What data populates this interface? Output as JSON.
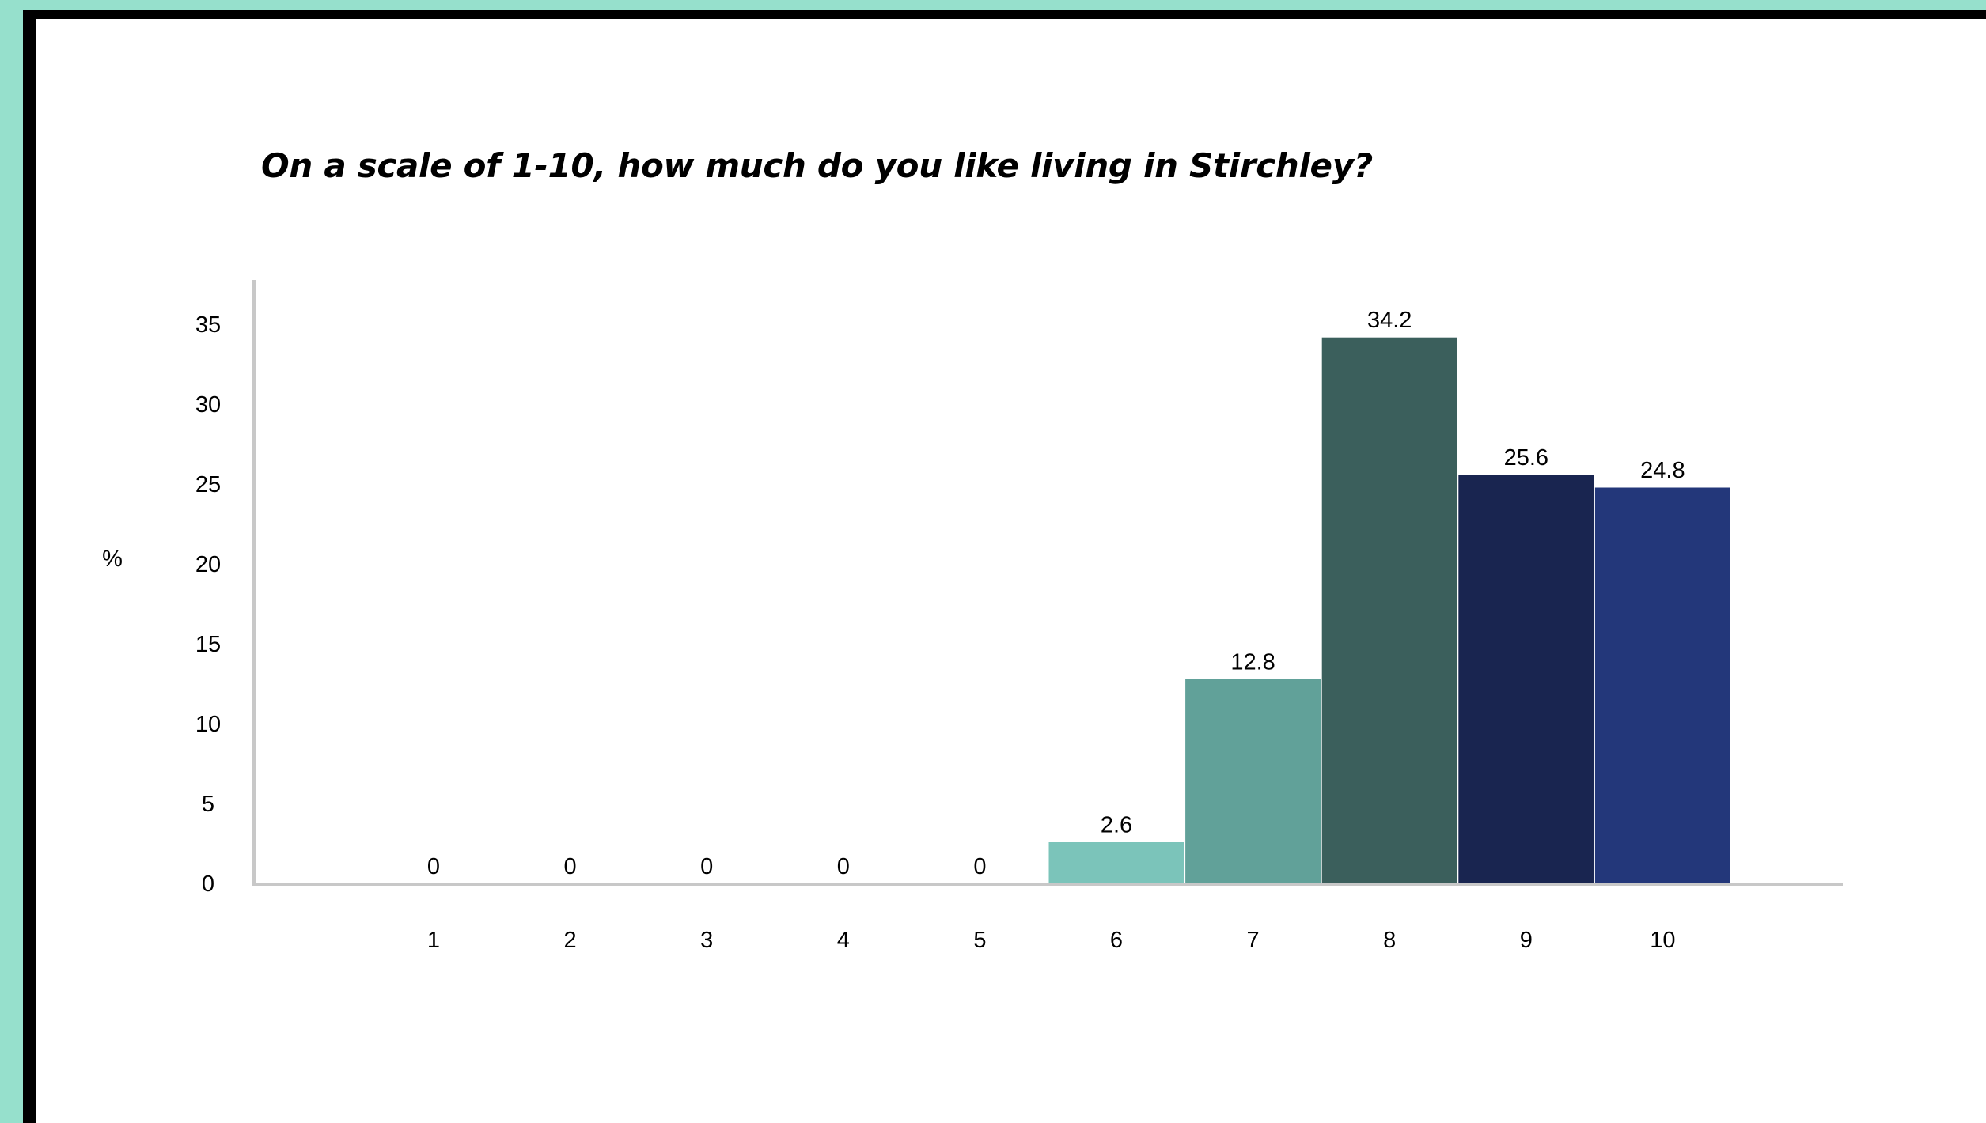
{
  "chart_data": {
    "type": "bar",
    "title": "On a scale of 1-10, how much do you like living in Stirchley?",
    "xlabel": "",
    "ylabel": "%",
    "categories": [
      "1",
      "2",
      "3",
      "4",
      "5",
      "6",
      "7",
      "8",
      "9",
      "10"
    ],
    "values": [
      0,
      0,
      0,
      0,
      0,
      2.6,
      12.8,
      34.2,
      25.6,
      24.8
    ],
    "data_labels": [
      "0",
      "0",
      "0",
      "0",
      "0",
      "2.6",
      "12.8",
      "34.2",
      "25.6",
      "24.8"
    ],
    "bar_colors": [
      "#7bc4ba",
      "#7bc4ba",
      "#7bc4ba",
      "#7bc4ba",
      "#7bc4ba",
      "#7bc4ba",
      "#61a199",
      "#3b5f5c",
      "#192550",
      "#23377a"
    ],
    "y_ticks": [
      0,
      5,
      10,
      15,
      20,
      25,
      30,
      35
    ],
    "ylim": [
      0,
      37.5
    ],
    "grid": false,
    "legend": "none"
  },
  "colors": {
    "page_background": "#96e0cc",
    "frame": "#000000",
    "panel": "#ffffff",
    "axis": "#c8c8c8"
  }
}
